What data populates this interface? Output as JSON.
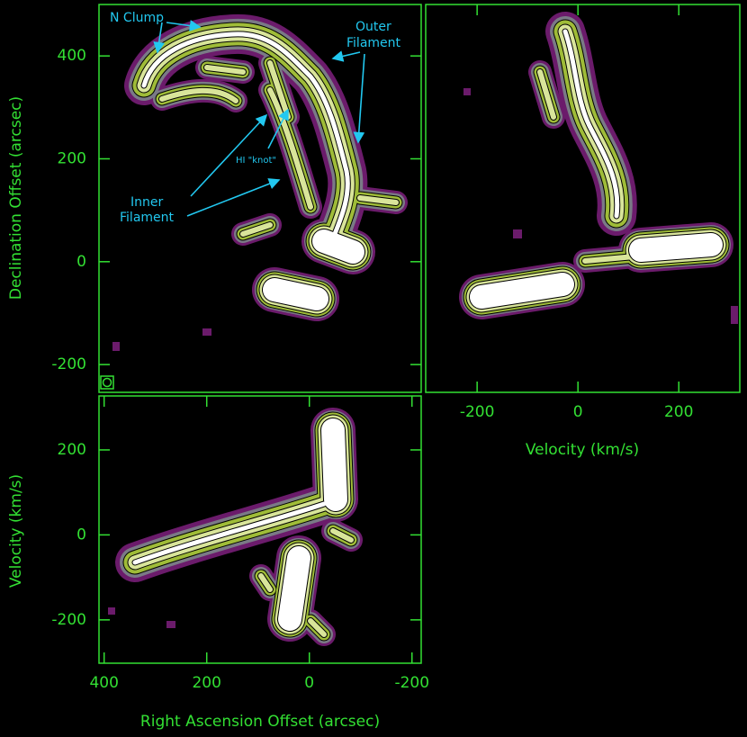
{
  "chart_data": [
    {
      "type": "map",
      "ylabel": "Declination Offset (arcsec)",
      "ylim": [
        -254,
        500
      ],
      "yticks": [
        -200,
        0,
        200,
        400
      ],
      "annotations": {
        "n_clump": "N Clump",
        "outer_filament": [
          "Outer",
          "Filament"
        ],
        "hi_knot": "HI \"knot\"",
        "inner_filament": [
          "Inner",
          "Filament"
        ]
      }
    },
    {
      "type": "map",
      "xlabel": "Velocity (km/s)",
      "xlim": [
        -302,
        321
      ],
      "xticks": [
        -200,
        0,
        200
      ]
    },
    {
      "type": "map",
      "xlabel": "Right Ascension Offset (arcsec)",
      "ylabel": "Velocity (km/s)",
      "xlim": [
        410,
        -218
      ],
      "ylim": [
        -302,
        327
      ],
      "xticks": [
        -200,
        0,
        200,
        400
      ],
      "yticks": [
        -200,
        0,
        200
      ]
    }
  ]
}
